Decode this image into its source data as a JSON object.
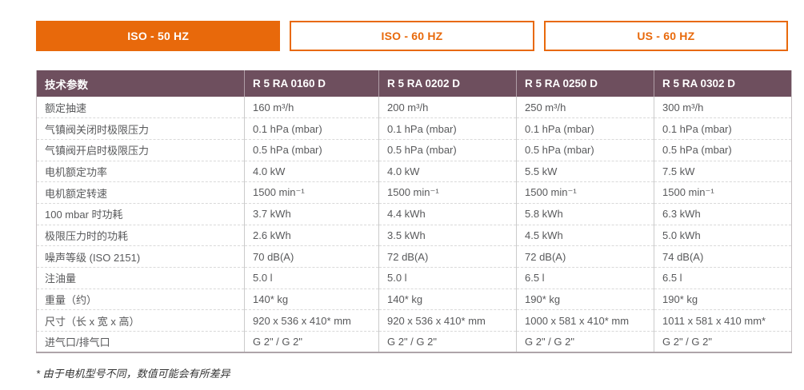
{
  "colors": {
    "accent": "#e8690b",
    "header_bg": "#6e4f5e"
  },
  "tabs": [
    {
      "label": "ISO - 50 HZ",
      "active": true
    },
    {
      "label": "ISO - 60 HZ",
      "active": false
    },
    {
      "label": "US - 60 HZ",
      "active": false
    }
  ],
  "table": {
    "headers": [
      "技术参数",
      "R 5 RA 0160 D",
      "R 5 RA 0202 D",
      "R 5 RA 0250 D",
      "R 5 RA 0302 D"
    ],
    "rows": [
      {
        "label": "额定抽速",
        "values": [
          "160 m³/h",
          "200 m³/h",
          "250 m³/h",
          "300 m³/h"
        ]
      },
      {
        "label": "气镇阀关闭时极限压力",
        "values": [
          "0.1 hPa (mbar)",
          "0.1 hPa (mbar)",
          "0.1 hPa (mbar)",
          "0.1 hPa (mbar)"
        ]
      },
      {
        "label": "气镇阀开启时极限压力",
        "values": [
          "0.5 hPa (mbar)",
          "0.5 hPa (mbar)",
          "0.5 hPa (mbar)",
          "0.5 hPa (mbar)"
        ]
      },
      {
        "label": "电机额定功率",
        "values": [
          "4.0 kW",
          "4.0 kW",
          "5.5 kW",
          "7.5 kW"
        ]
      },
      {
        "label": "电机额定转速",
        "values": [
          "1500 min⁻¹",
          "1500 min⁻¹",
          "1500 min⁻¹",
          "1500 min⁻¹"
        ]
      },
      {
        "label": "100 mbar 时功耗",
        "values": [
          "3.7 kWh",
          "4.4 kWh",
          "5.8 kWh",
          "6.3 kWh"
        ]
      },
      {
        "label": "极限压力时的功耗",
        "values": [
          "2.6 kWh",
          "3.5 kWh",
          "4.5 kWh",
          "5.0 kWh"
        ]
      },
      {
        "label": "噪声等级 (ISO 2151)",
        "values": [
          "70 dB(A)",
          "72 dB(A)",
          "72 dB(A)",
          "74 dB(A)"
        ]
      },
      {
        "label": "注油量",
        "values": [
          "5.0 l",
          "5.0 l",
          "6.5 l",
          "6.5 l"
        ]
      },
      {
        "label": "重量（约）",
        "values": [
          "140* kg",
          "140* kg",
          "190* kg",
          "190* kg"
        ]
      },
      {
        "label": "尺寸（长 x 宽 x 高）",
        "values": [
          "920 x 536 x 410* mm",
          "920 x 536 x 410* mm",
          "1000 x 581 x 410* mm",
          "1011 x 581 x 410 mm*"
        ]
      },
      {
        "label": "进气口/排气口",
        "values": [
          "G 2\" / G 2\"",
          "G 2\" / G 2\"",
          "G 2\" / G 2\"",
          "G 2\" / G 2\""
        ]
      }
    ]
  },
  "footnote": "* 由于电机型号不同，数值可能会有所差异"
}
